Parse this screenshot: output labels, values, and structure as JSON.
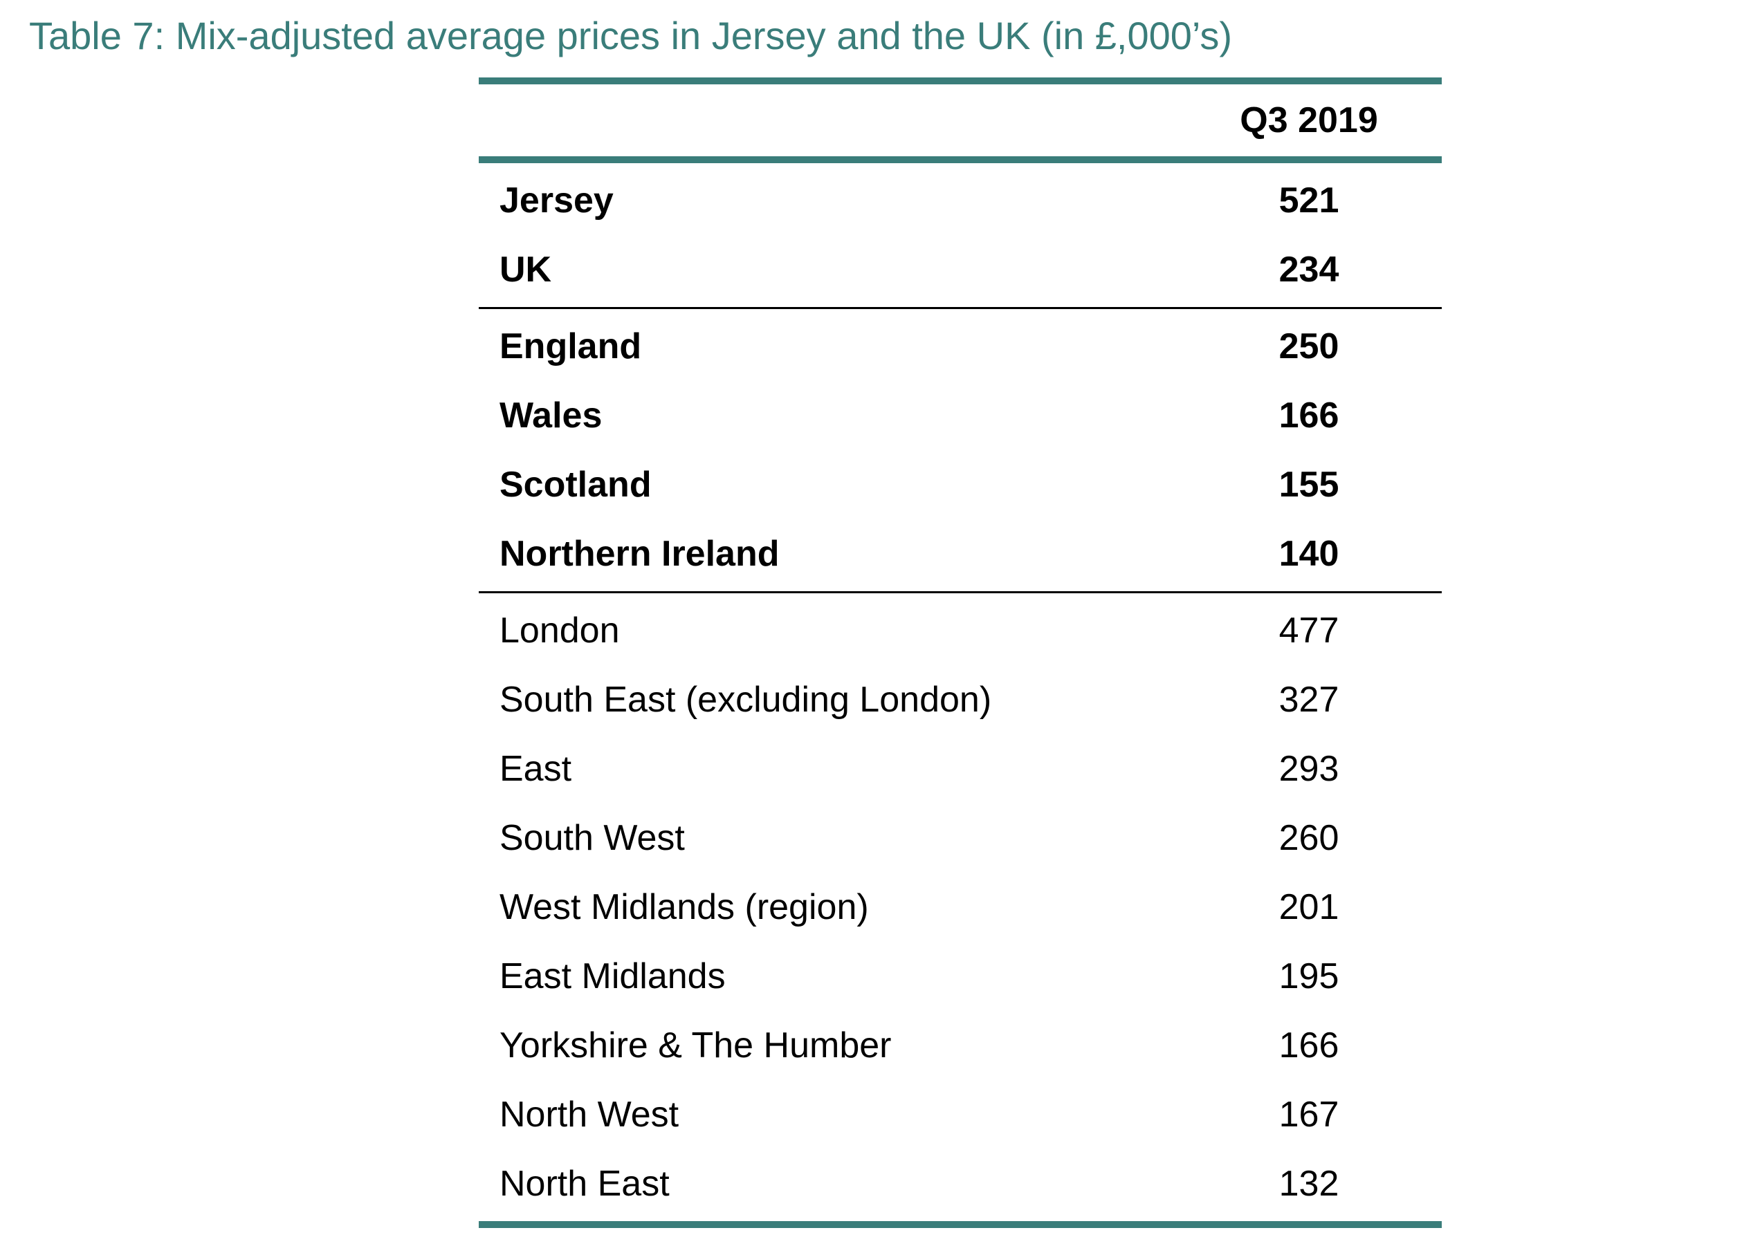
{
  "caption": "Table 7:  Mix-adjusted average prices in Jersey and the UK (in £,000’s)",
  "table": {
    "column_header": "Q3 2019",
    "groups": [
      {
        "rows": [
          {
            "label": "Jersey",
            "value": "521"
          },
          {
            "label": "UK",
            "value": "234"
          }
        ]
      },
      {
        "rows": [
          {
            "label": "England",
            "value": "250"
          },
          {
            "label": "Wales",
            "value": "166"
          },
          {
            "label": "Scotland",
            "value": "155"
          },
          {
            "label": "Northern Ireland",
            "value": "140"
          }
        ]
      },
      {
        "rows": [
          {
            "label": "London",
            "value": "477"
          },
          {
            "label": "South East (excluding London)",
            "value": "327"
          },
          {
            "label": "East",
            "value": "293"
          },
          {
            "label": "South West",
            "value": "260"
          },
          {
            "label": "West Midlands (region)",
            "value": "201"
          },
          {
            "label": "East Midlands",
            "value": "195"
          },
          {
            "label": "Yorkshire & The Humber",
            "value": "166"
          },
          {
            "label": "North West",
            "value": "167"
          },
          {
            "label": "North East",
            "value": "132"
          }
        ]
      }
    ]
  },
  "colors": {
    "accent": "#3a7d7a",
    "text": "#000000"
  }
}
